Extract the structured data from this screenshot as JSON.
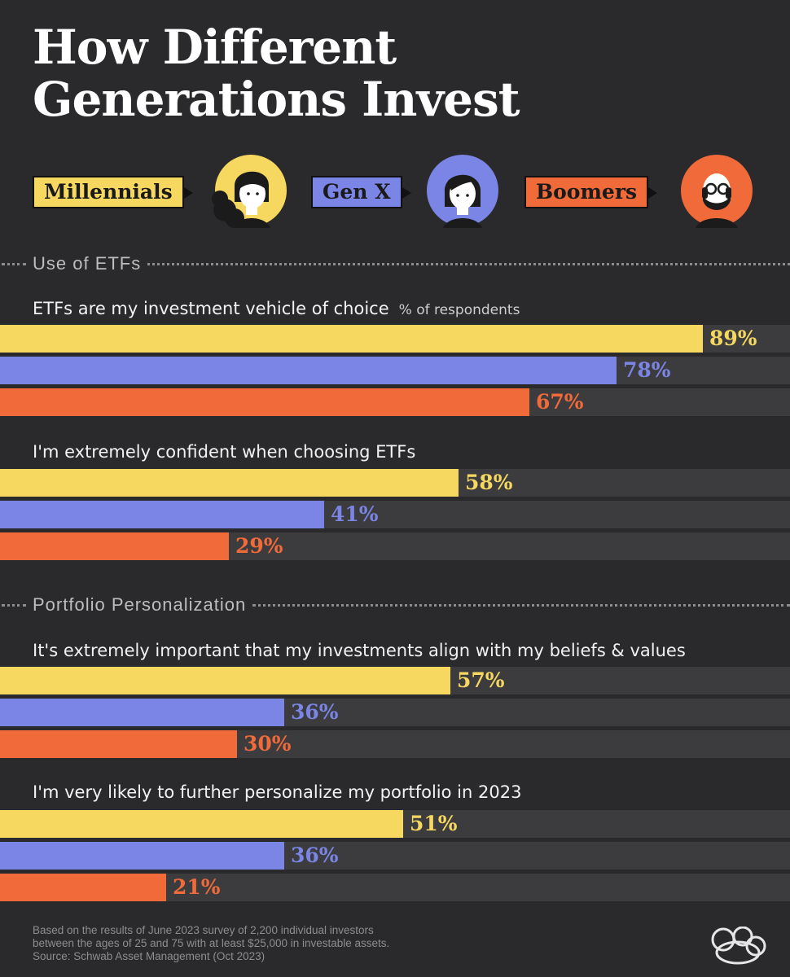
{
  "title_line1": "How Different",
  "title_line2": "Generations Invest",
  "legend": [
    {
      "label": "Millennials",
      "color": "#f6d860",
      "icon": "millennial-avatar-icon"
    },
    {
      "label": "Gen X",
      "color": "#7b85e6",
      "icon": "gen-x-avatar-icon"
    },
    {
      "label": "Boomers",
      "color": "#f06a3a",
      "icon": "boomer-avatar-icon"
    }
  ],
  "sections": [
    {
      "label": "Use of ETFs"
    },
    {
      "label": "Portfolio Personalization"
    }
  ],
  "unit_note": "% of respondents",
  "chart_data": {
    "type": "bar",
    "orientation": "horizontal",
    "xlim": [
      0,
      100
    ],
    "series_colors": [
      "#f6d860",
      "#7b85e6",
      "#f06a3a"
    ],
    "series": [
      {
        "name": "Millennials"
      },
      {
        "name": "Gen X"
      },
      {
        "name": "Boomers"
      }
    ],
    "questions": [
      {
        "section": "Use of ETFs",
        "label": "ETFs are my investment vehicle of choice",
        "values": [
          89,
          78,
          67
        ],
        "value_labels": [
          "89%",
          "78%",
          "67%"
        ]
      },
      {
        "section": "Use of ETFs",
        "label": "I'm extremely confident when choosing ETFs",
        "values": [
          58,
          41,
          29
        ],
        "value_labels": [
          "58%",
          "41%",
          "29%"
        ]
      },
      {
        "section": "Portfolio Personalization",
        "label": "It's extremely important that my investments align with my beliefs & values",
        "values": [
          57,
          36,
          30
        ],
        "value_labels": [
          "57%",
          "36%",
          "30%"
        ]
      },
      {
        "section": "Portfolio Personalization",
        "label": "I'm very likely to further personalize my portfolio in 2023",
        "values": [
          51,
          36,
          21
        ],
        "value_labels": [
          "51%",
          "36%",
          "21%"
        ]
      }
    ]
  },
  "footnote": [
    "Based on the results of June 2023 survey of 2,200 individual investors",
    "between the ages of 25 and 75 with at least $25,000 in investable assets.",
    "Source: Schwab Asset Management (Oct 2023)"
  ],
  "brand_icon": "visual-capitalist-logo-icon"
}
